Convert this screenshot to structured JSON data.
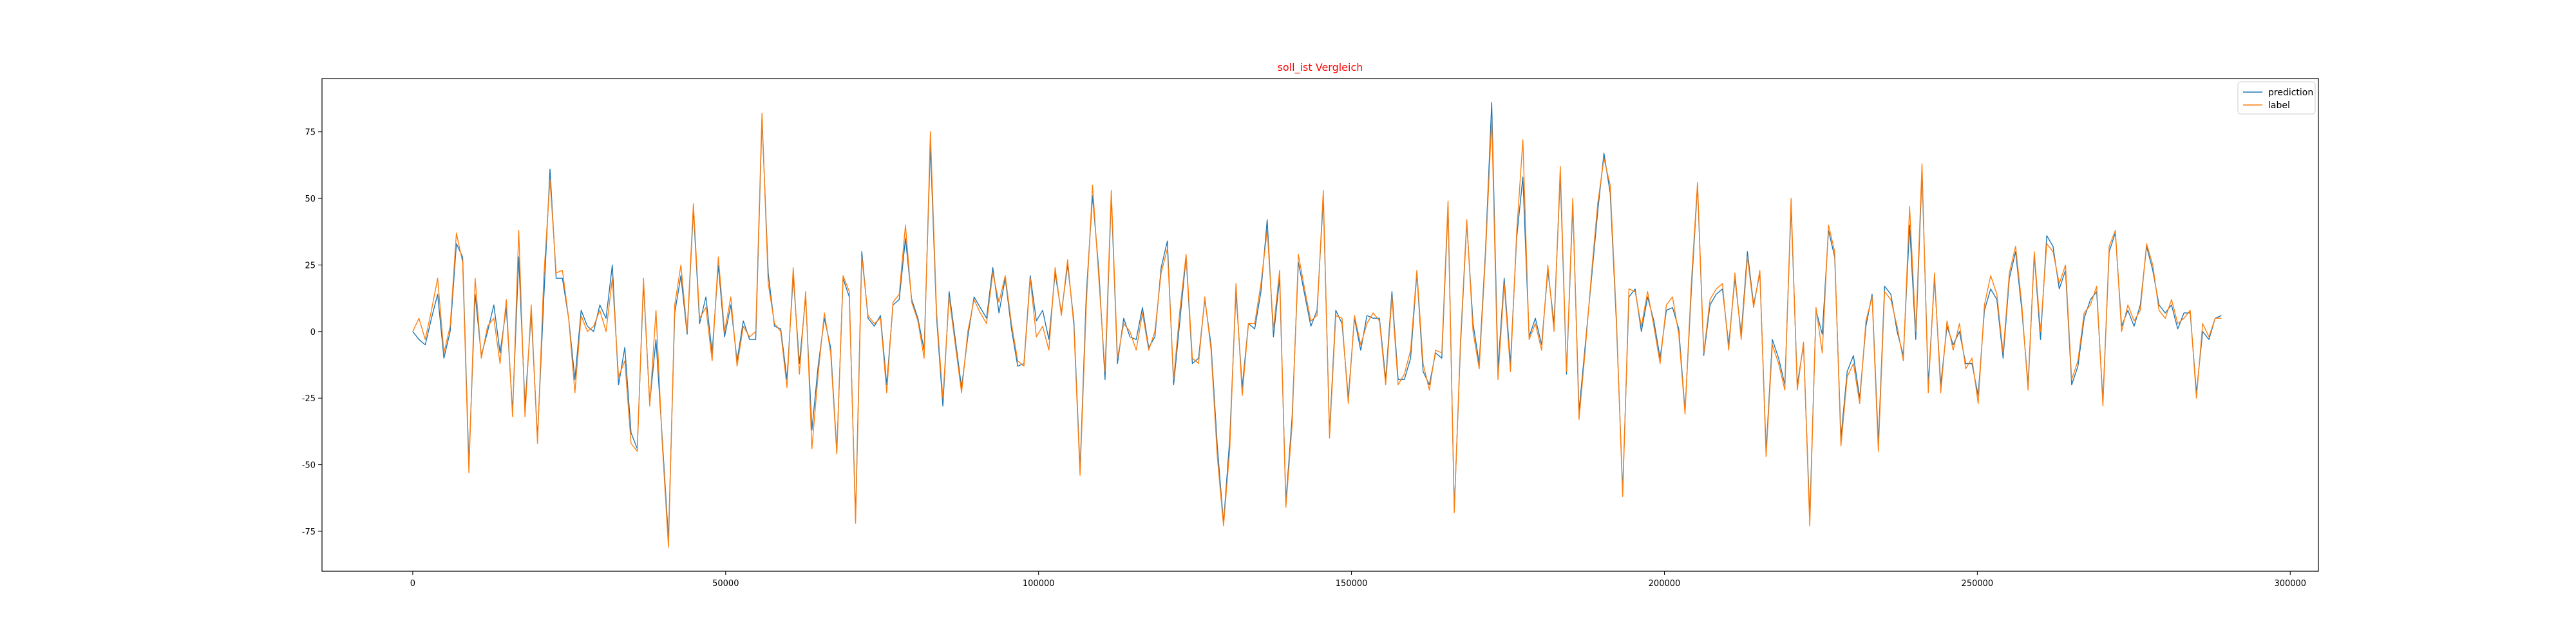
{
  "chart_data": {
    "type": "line",
    "title": "soll_ist Vergleich",
    "title_color": "#ff0000",
    "xlabel": "",
    "ylabel": "",
    "xlim": [
      -14500,
      304500
    ],
    "ylim": [
      -90,
      95
    ],
    "x_ticks": [
      0,
      50000,
      100000,
      150000,
      200000,
      250000,
      300000
    ],
    "y_ticks": [
      -75,
      -50,
      -25,
      0,
      25,
      50,
      75
    ],
    "grid": false,
    "legend_position": "top-right",
    "series": [
      {
        "name": "prediction",
        "color": "#1f77b4",
        "values": [
          0,
          -3,
          -5,
          5,
          14,
          -10,
          0,
          33,
          28,
          -50,
          14,
          -9,
          0,
          10,
          -8,
          9,
          -30,
          28,
          -28,
          7,
          -40,
          12,
          61,
          20,
          20,
          5,
          -18,
          8,
          2,
          0,
          10,
          5,
          25,
          -20,
          -6,
          -38,
          -44,
          18,
          -27,
          -3,
          -40,
          -78,
          7,
          21,
          -1,
          46,
          3,
          13,
          -8,
          25,
          -2,
          10,
          -11,
          4,
          -3,
          -3,
          80,
          22,
          2,
          1,
          -18,
          21,
          -12,
          13,
          -37,
          -13,
          5,
          -6,
          -45,
          20,
          13,
          -70,
          30,
          5,
          2,
          6,
          -20,
          10,
          12,
          35,
          12,
          5,
          -7,
          70,
          5,
          -28,
          15,
          -3,
          -21,
          -2,
          13,
          9,
          5,
          24,
          7,
          20,
          1,
          -13,
          -12,
          21,
          4,
          8,
          -3,
          22,
          7,
          25,
          4,
          -52,
          14,
          51,
          23,
          -18,
          51,
          -12,
          5,
          -2,
          -3,
          9,
          -6,
          -2,
          24,
          34,
          -20,
          4,
          28,
          -12,
          -10,
          12,
          -5,
          -43,
          -72,
          -40,
          15,
          -21,
          3,
          1,
          15,
          42,
          -2,
          20,
          -64,
          -32,
          26,
          14,
          2,
          8,
          50,
          -38,
          8,
          3,
          -25,
          5,
          -7,
          6,
          5,
          5,
          -18,
          15,
          -18,
          -18,
          -10,
          22,
          -15,
          -20,
          -8,
          -10,
          47,
          -67,
          -5,
          41,
          3,
          -12,
          30,
          86,
          -14,
          20,
          -12,
          35,
          58,
          -2,
          5,
          -5,
          23,
          3,
          59,
          -16,
          48,
          -30,
          -5,
          20,
          45,
          67,
          52,
          3,
          -60,
          13,
          16,
          0,
          13,
          4,
          -10,
          8,
          9,
          1,
          -30,
          15,
          55,
          -9,
          10,
          14,
          16,
          -5,
          20,
          -1,
          30,
          10,
          22,
          -45,
          -3,
          -10,
          -20,
          47,
          -20,
          -5,
          -70,
          8,
          -1,
          38,
          28,
          -40,
          -15,
          -9,
          -25,
          2,
          14,
          -42,
          17,
          14,
          0,
          -9,
          40,
          -3,
          60,
          -20,
          20,
          -20,
          2,
          -5,
          0,
          -12,
          -12,
          -24,
          8,
          16,
          12,
          -10,
          20,
          30,
          8,
          -20,
          29,
          -3,
          36,
          32,
          16,
          23,
          -20,
          -13,
          5,
          12,
          15,
          -26,
          30,
          37,
          2,
          8,
          2,
          10,
          32,
          23,
          10,
          7,
          10,
          1,
          7,
          7,
          -23,
          0,
          -3,
          5,
          6
        ]
      },
      {
        "name": "label",
        "color": "#ff7f0e",
        "values": [
          0,
          5,
          -3,
          8,
          20,
          -8,
          2,
          37,
          26,
          -53,
          20,
          -10,
          2,
          5,
          -12,
          12,
          -32,
          38,
          -32,
          10,
          -42,
          20,
          57,
          22,
          23,
          5,
          -23,
          6,
          0,
          2,
          8,
          0,
          20,
          -17,
          -11,
          -42,
          -45,
          20,
          -28,
          8,
          -42,
          -81,
          10,
          25,
          0,
          48,
          5,
          9,
          -11,
          28,
          0,
          13,
          -13,
          2,
          -2,
          0,
          82,
          18,
          3,
          0,
          -21,
          24,
          -16,
          15,
          -44,
          -16,
          7,
          -8,
          -46,
          21,
          15,
          -72,
          28,
          6,
          3,
          5,
          -23,
          11,
          14,
          40,
          11,
          4,
          -10,
          75,
          7,
          -25,
          13,
          -5,
          -23,
          0,
          12,
          7,
          3,
          22,
          11,
          21,
          3,
          -11,
          -13,
          20,
          -2,
          2,
          -7,
          24,
          6,
          27,
          2,
          -54,
          10,
          55,
          20,
          -15,
          53,
          -10,
          3,
          0,
          -7,
          7,
          -7,
          0,
          22,
          31,
          -18,
          8,
          29,
          -10,
          -12,
          13,
          -7,
          -47,
          -73,
          -44,
          18,
          -24,
          3,
          3,
          18,
          38,
          1,
          23,
          -66,
          -35,
          29,
          16,
          4,
          6,
          53,
          -40,
          6,
          5,
          -27,
          6,
          -5,
          3,
          7,
          4,
          -20,
          13,
          -20,
          -16,
          -7,
          23,
          -12,
          -22,
          -7,
          -8,
          49,
          -68,
          -3,
          42,
          0,
          -14,
          28,
          80,
          -18,
          18,
          -15,
          37,
          72,
          -3,
          3,
          -7,
          25,
          0,
          62,
          -15,
          50,
          -33,
          -7,
          22,
          48,
          65,
          55,
          5,
          -62,
          16,
          15,
          2,
          15,
          2,
          -12,
          10,
          13,
          -1,
          -31,
          18,
          56,
          -8,
          12,
          16,
          18,
          -7,
          22,
          -3,
          28,
          9,
          23,
          -47,
          -5,
          -12,
          -22,
          50,
          -22,
          -4,
          -73,
          9,
          -8,
          40,
          30,
          -43,
          -17,
          -12,
          -27,
          4,
          13,
          -45,
          15,
          12,
          2,
          -11,
          47,
          0,
          63,
          -23,
          22,
          -23,
          4,
          -7,
          3,
          -14,
          -10,
          -27,
          10,
          21,
          14,
          -8,
          22,
          32,
          10,
          -22,
          30,
          0,
          33,
          30,
          18,
          25,
          -18,
          -11,
          7,
          10,
          17,
          -28,
          32,
          38,
          0,
          10,
          4,
          8,
          33,
          25,
          8,
          5,
          12,
          3,
          5,
          8,
          -25,
          3,
          -2,
          5,
          5
        ]
      }
    ]
  }
}
